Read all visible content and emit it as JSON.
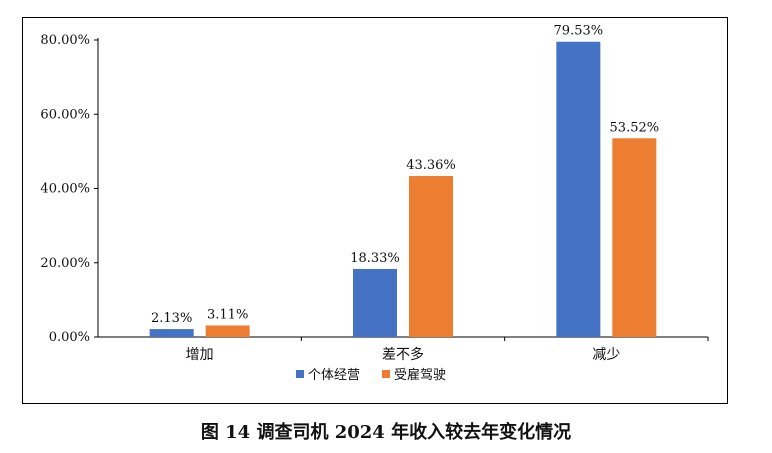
{
  "caption": "图 14  调查司机 2024 年收入较去年变化情况",
  "chart_data": {
    "type": "bar",
    "categories": [
      "增加",
      "差不多",
      "减少"
    ],
    "series": [
      {
        "name": "个体经营",
        "values": [
          2.13,
          18.33,
          79.53
        ],
        "color": "#4472C4"
      },
      {
        "name": "受雇驾驶",
        "values": [
          3.11,
          43.36,
          53.52
        ],
        "color": "#ED7D31"
      }
    ],
    "yticks": [
      "0.00%",
      "20.00%",
      "40.00%",
      "60.00%",
      "80.00%"
    ],
    "ylim": [
      0,
      80
    ],
    "data_labels": [
      [
        "2.13%",
        "18.33%",
        "79.53%"
      ],
      [
        "3.11%",
        "43.36%",
        "53.52%"
      ]
    ],
    "legend_position": "bottom",
    "grid": false
  }
}
